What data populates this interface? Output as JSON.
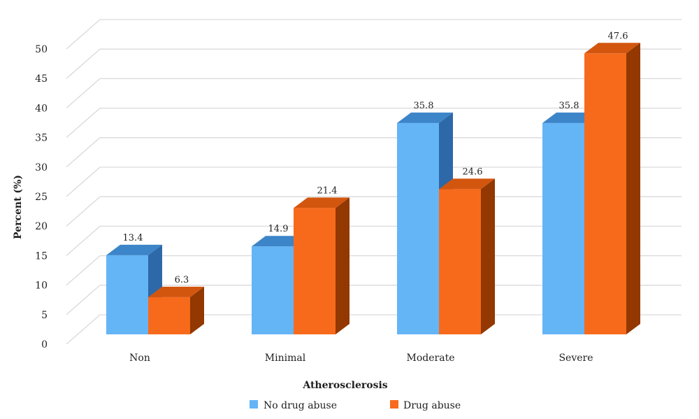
{
  "chart_data": {
    "type": "bar",
    "style": "3d-clustered-column",
    "categories": [
      "Non",
      "Minimal",
      "Moderate",
      "Severe"
    ],
    "series": [
      {
        "name": "No drug abuse",
        "values": [
          13.4,
          14.9,
          35.8,
          35.8
        ],
        "color": "#64b5f6",
        "top_color": "#3d85c9",
        "side_color": "#2d68a8"
      },
      {
        "name": "Drug abuse",
        "values": [
          6.3,
          21.4,
          24.6,
          47.6
        ],
        "color": "#f76a1c",
        "top_color": "#d3560f",
        "side_color": "#923800"
      }
    ],
    "xlabel": "Atherosclerosis",
    "ylabel": "Percent (%)",
    "ylim": [
      0,
      50
    ],
    "yticks": [
      0,
      5,
      10,
      15,
      20,
      25,
      30,
      35,
      40,
      45,
      50
    ],
    "grid": true,
    "grid_color": "#d9d9d9",
    "data_labels": true,
    "legend": "bottom"
  }
}
